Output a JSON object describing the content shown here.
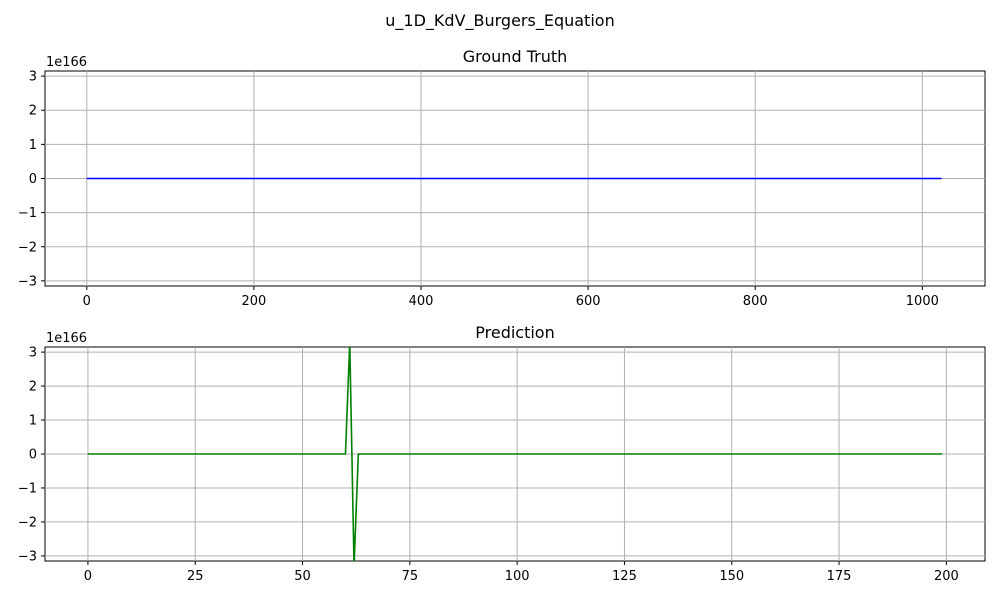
{
  "figure": {
    "suptitle": "u_1D_KdV_Burgers_Equation"
  },
  "chart_data": [
    {
      "type": "line",
      "title": "Ground Truth",
      "offset_text": "1e166",
      "color": "#0000ff",
      "grid": true,
      "xlim": [
        -50,
        1075
      ],
      "ylim": [
        -3.15,
        3.15
      ],
      "x_ticks": [
        0,
        200,
        400,
        600,
        800,
        1000
      ],
      "y_ticks": [
        -3,
        -2,
        -1,
        0,
        1,
        2,
        3
      ],
      "series": [
        {
          "x": [
            0,
            1023
          ],
          "y": [
            0,
            0
          ]
        }
      ]
    },
    {
      "type": "line",
      "title": "Prediction",
      "offset_text": "1e166",
      "color": "#008000",
      "grid": true,
      "xlim": [
        -10,
        209
      ],
      "ylim": [
        -3.15,
        3.15
      ],
      "x_ticks": [
        0,
        25,
        50,
        75,
        100,
        125,
        150,
        175,
        200
      ],
      "y_ticks": [
        -3,
        -2,
        -1,
        0,
        1,
        2,
        3
      ],
      "series": [
        {
          "x": [
            0,
            60,
            61,
            62,
            63,
            199
          ],
          "y": [
            0,
            0,
            3.3,
            -3.3,
            0,
            0
          ]
        }
      ]
    }
  ]
}
